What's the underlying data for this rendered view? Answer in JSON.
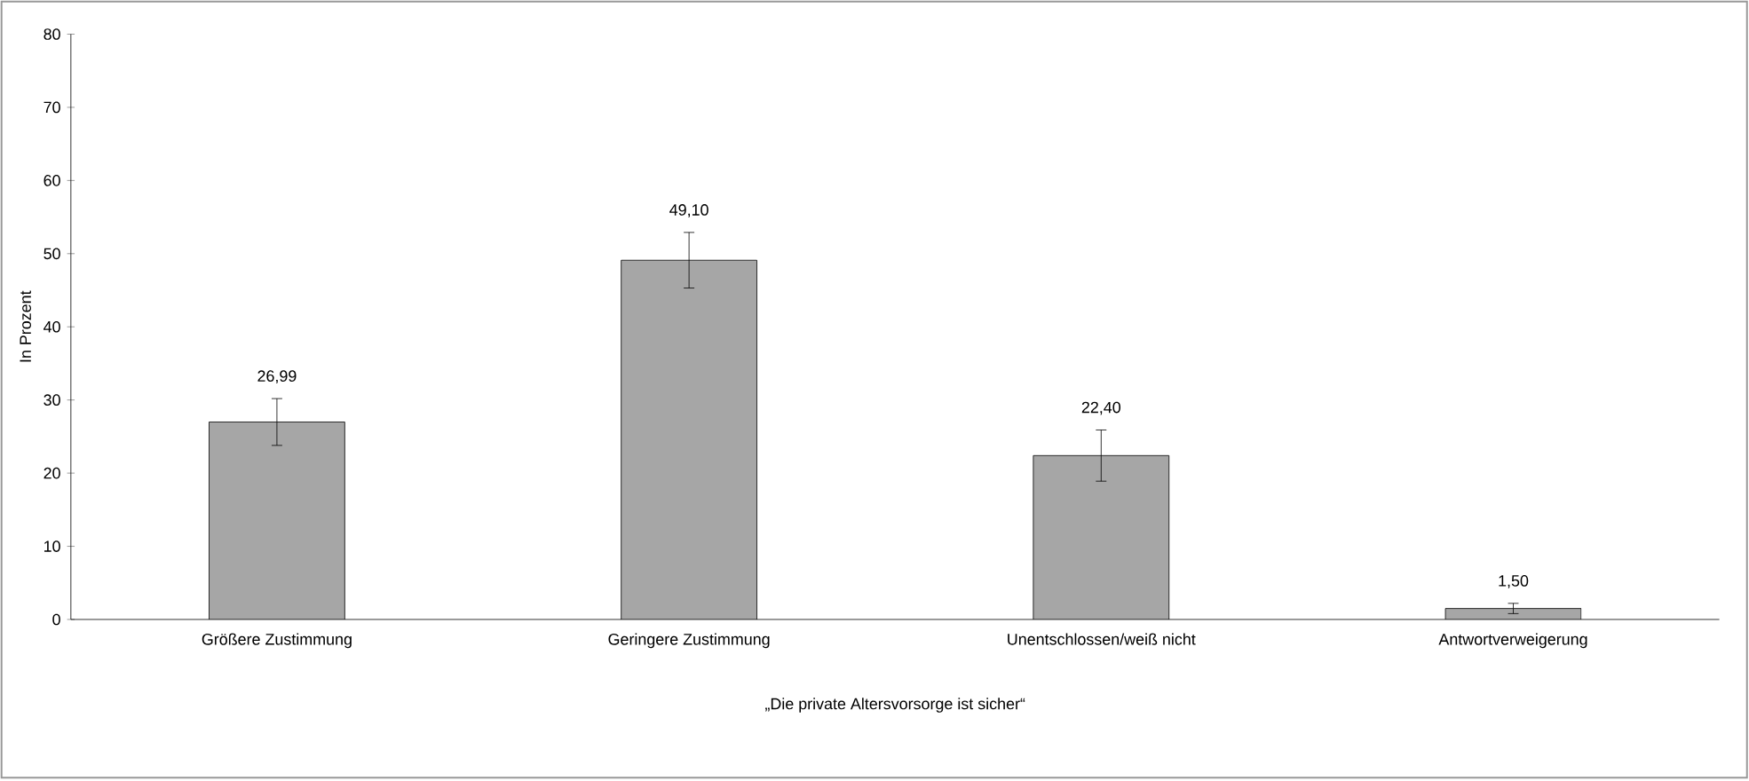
{
  "chart_data": {
    "type": "bar",
    "xlabel": "„Die private Altersvorsorge ist sicher“",
    "ylabel": "In Prozent",
    "categories": [
      "Größere Zustimmung",
      "Geringere Zustimmung",
      "Unentschlossen/weiß nicht",
      "Antwortverweigerung"
    ],
    "values": [
      26.99,
      49.1,
      22.4,
      1.5
    ],
    "errors": [
      3.2,
      3.8,
      3.5,
      0.7
    ],
    "value_labels": [
      "26,99",
      "49,10",
      "22,40",
      "1,50"
    ],
    "color": "#a6a6a6",
    "ylim": [
      0,
      80
    ],
    "yticks": [
      0,
      10,
      20,
      30,
      40,
      50,
      60,
      70,
      80
    ],
    "grid": false
  }
}
